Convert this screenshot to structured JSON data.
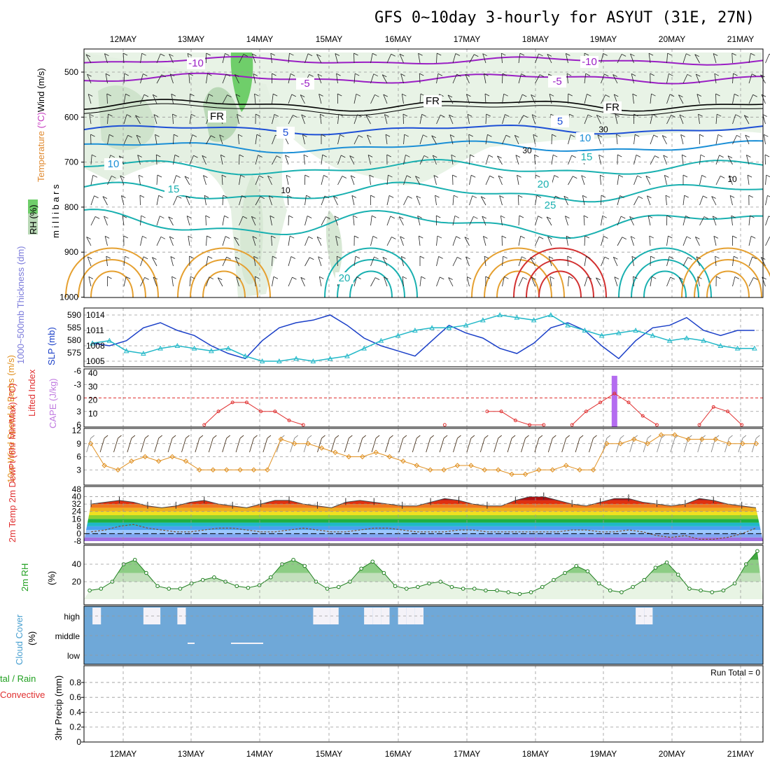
{
  "title": "GFS 0~10day 3-hourly for ASYUT (31E, 27N)",
  "chart_data": [
    {
      "type": "contour",
      "panel": "upper-air",
      "x_dates": [
        "12MAY",
        "13MAY",
        "14MAY",
        "15MAY",
        "16MAY",
        "17MAY",
        "18MAY",
        "19MAY",
        "20MAY",
        "21MAY"
      ],
      "y_axis_label": "millibars",
      "y_ticks": [
        "500",
        "600",
        "700",
        "800",
        "900",
        "1000"
      ],
      "legend_labels": {
        "rh": "RH (%)",
        "temperature": "Temperature (°C)",
        "wind": "Wind (m/s)"
      },
      "contour_labels": [
        {
          "text": "-10",
          "temp": -10,
          "color": "#9a1fc4"
        },
        {
          "text": "-10",
          "temp": -10,
          "color": "#9a1fc4"
        },
        {
          "text": "-5",
          "temp": -5,
          "color": "#9a1fc4"
        },
        {
          "text": "-5",
          "temp": -5,
          "color": "#9a1fc4"
        },
        {
          "text": "FR",
          "temp": 0,
          "color": "#000000"
        },
        {
          "text": "FR",
          "temp": 0,
          "color": "#000000"
        },
        {
          "text": "FR",
          "temp": 0,
          "color": "#000000"
        },
        {
          "text": "5",
          "temp": 5,
          "color": "#1d4fd6"
        },
        {
          "text": "5",
          "temp": 5,
          "color": "#1d4fd6"
        },
        {
          "text": "10",
          "temp": 10,
          "color": "#1b8fd6"
        },
        {
          "text": "10",
          "temp": 10,
          "color": "#1b8fd6"
        },
        {
          "text": "15",
          "temp": 15,
          "color": "#19b0b0"
        },
        {
          "text": "15",
          "temp": 15,
          "color": "#19b0b0"
        },
        {
          "text": "20",
          "temp": 20,
          "color": "#19b0b0"
        },
        {
          "text": "20",
          "temp": 20,
          "color": "#19b0b0"
        },
        {
          "text": "25",
          "temp": 25,
          "color": "#19b0b0"
        }
      ],
      "rh_labels": [
        "30",
        "30",
        "10",
        "10"
      ]
    },
    {
      "type": "line",
      "panel": "thickness-slp",
      "ylabel_left": "1000~500mb Thickness (dm)",
      "ylabel_right": "SLP (mb)",
      "y_ticks_left": [
        "590",
        "585",
        "580",
        "575"
      ],
      "y_ticks_right": [
        "1014",
        "1011",
        "1008",
        "1005"
      ],
      "series": [
        {
          "name": "thickness",
          "color": "#1a3fc8",
          "values": [
            1008.5,
            1008.0,
            1009.0,
            1011.5,
            1012.5,
            1011.0,
            1010.0,
            1008.0,
            1006.5,
            1005.5,
            1009.0,
            1011.5,
            1012.5,
            1013.0,
            1014.0,
            1012.0,
            1009.5,
            1008.0,
            1007.0,
            1006.0,
            1009.0,
            1012.0,
            1010.5,
            1009.5,
            1007.5,
            1006.5,
            1008.5,
            1011.5,
            1012.5,
            1011.0,
            1008.0,
            1005.5,
            1009.0,
            1011.5,
            1012.0,
            1013.5,
            1011.0,
            1010.0,
            1011.0,
            1011.0
          ]
        },
        {
          "name": "slp",
          "color": "#22b8c8",
          "values": [
            1008.5,
            1009.0,
            1007.0,
            1006.5,
            1007.5,
            1008.0,
            1007.5,
            1007.0,
            1007.5,
            1006.0,
            1005.0,
            1005.0,
            1005.5,
            1005.0,
            1005.5,
            1006.0,
            1007.5,
            1009.0,
            1010.0,
            1011.0,
            1011.5,
            1011.5,
            1012.0,
            1013.0,
            1014.0,
            1013.5,
            1013.0,
            1014.0,
            1012.0,
            1011.0,
            1010.0,
            1010.5,
            1011.0,
            1010.0,
            1009.0,
            1009.5,
            1009.0,
            1008.0,
            1007.5,
            1007.5
          ]
        }
      ]
    },
    {
      "type": "line",
      "panel": "lifted-index-cape",
      "ylabel_left": "Lifted Index",
      "ylabel_right": "CAPE (J/kg)",
      "y_ticks_left": [
        "-6",
        "-3",
        "0",
        "3",
        "6"
      ],
      "y_ticks_right": [
        "40",
        "30",
        "20",
        "10"
      ],
      "series": [
        {
          "name": "lifted_index",
          "color": "#e03030",
          "values": [
            null,
            null,
            null,
            null,
            null,
            null,
            null,
            null,
            6,
            3,
            1,
            1,
            3,
            3,
            5,
            6,
            null,
            null,
            null,
            null,
            null,
            null,
            null,
            null,
            null,
            6,
            null,
            null,
            3,
            3,
            5,
            6,
            6,
            null,
            6,
            3,
            1,
            -1,
            1,
            4,
            6,
            null,
            null,
            6,
            2,
            3,
            6,
            null
          ]
        }
      ],
      "cape_bar": {
        "value": 38,
        "color": "#b46cf0"
      }
    },
    {
      "type": "line",
      "panel": "wind10m",
      "ylabel": "10m Wind Speed & Barbs (m/s)",
      "y_ticks": [
        "12",
        "9",
        "6",
        "3"
      ],
      "values": [
        9,
        4,
        3,
        5,
        6,
        5,
        6,
        5,
        3,
        3,
        3,
        3,
        3,
        3,
        10,
        9,
        9,
        8,
        7,
        6,
        6,
        7,
        6,
        5,
        4,
        3,
        3,
        4,
        4,
        3,
        3,
        2,
        2,
        3,
        3,
        4,
        3,
        3,
        9,
        9,
        10,
        9,
        11,
        11,
        10,
        10,
        10,
        9,
        9,
        9
      ]
    },
    {
      "type": "area",
      "panel": "temp2m",
      "ylabel": "2m Temp 2m DewPt (6hr Min/Max) (°C)",
      "y_ticks": [
        "48",
        "40",
        "32",
        "24",
        "16",
        "8",
        "0",
        "-8"
      ],
      "temp": [
        32,
        34,
        36,
        34,
        30,
        28,
        30,
        34,
        36,
        32,
        30,
        28,
        32,
        36,
        36,
        32,
        30,
        28,
        34,
        36,
        34,
        32,
        30,
        30,
        34,
        38,
        36,
        32,
        30,
        30,
        36,
        40,
        40,
        36,
        32,
        30,
        34,
        38,
        38,
        34,
        32,
        30,
        32,
        38,
        36,
        32,
        30,
        28
      ],
      "dewpt": [
        2,
        4,
        8,
        10,
        6,
        4,
        2,
        2,
        4,
        6,
        6,
        4,
        2,
        2,
        4,
        6,
        4,
        2,
        2,
        4,
        6,
        6,
        4,
        2,
        2,
        2,
        4,
        4,
        2,
        2,
        2,
        2,
        2,
        2,
        4,
        4,
        2,
        2,
        4,
        2,
        -2,
        -4,
        -2,
        -6,
        -6,
        -4,
        0,
        6
      ]
    },
    {
      "type": "area",
      "panel": "rh2m",
      "ylabel": "2m RH (%)",
      "y_ticks": [
        "40",
        "20"
      ],
      "values": [
        10,
        12,
        20,
        40,
        45,
        30,
        15,
        12,
        12,
        18,
        22,
        25,
        20,
        15,
        13,
        16,
        25,
        40,
        45,
        38,
        20,
        12,
        14,
        20,
        35,
        43,
        30,
        15,
        12,
        14,
        18,
        20,
        14,
        12,
        12,
        10,
        10,
        8,
        6,
        8,
        14,
        22,
        30,
        38,
        32,
        18,
        10,
        8,
        14,
        22,
        36,
        42,
        28,
        12,
        10,
        8,
        10,
        18,
        40,
        55
      ]
    },
    {
      "type": "bar",
      "panel": "cloud",
      "ylabel": "Cloud Cover (%)",
      "y_ticks": [
        "high",
        "middle",
        "low"
      ],
      "high_cloud": [
        0,
        1,
        0,
        0,
        0,
        0,
        0,
        1,
        1,
        0,
        0,
        1,
        0,
        0,
        0,
        0,
        0,
        0,
        0,
        0,
        0,
        0,
        0,
        0,
        0,
        0,
        0,
        1,
        1,
        1,
        0,
        0,
        0,
        1,
        1,
        1,
        0,
        1,
        1,
        1,
        0,
        0,
        0,
        0,
        0,
        0,
        0,
        0,
        0,
        0,
        0,
        0,
        0,
        0,
        0,
        0,
        0,
        0,
        0,
        0,
        0,
        0,
        0,
        0,
        0,
        1,
        1,
        0,
        0,
        0,
        0,
        0,
        0,
        0,
        0,
        0,
        0,
        0,
        0,
        0
      ]
    },
    {
      "type": "bar",
      "panel": "precip",
      "ylabel": "3hr Precip (mm)",
      "legend_total": "tal / Rain",
      "legend_conv": "Convective",
      "run_total": "Run Total = 0",
      "y_ticks": [
        "0.8",
        "0.6",
        "0.4",
        "0.2",
        "0"
      ],
      "values": []
    }
  ]
}
